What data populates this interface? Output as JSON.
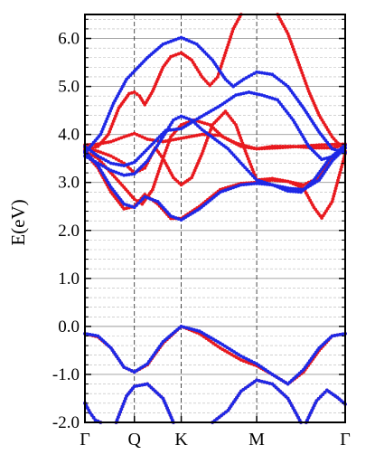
{
  "chart_data": {
    "type": "scatter",
    "title": "",
    "ylabel": "E(eV)",
    "xlabel": "",
    "ylim": [
      -2.0,
      6.5
    ],
    "xlim": [
      0,
      1
    ],
    "y_ticks": [
      -2.0,
      -1.0,
      0.0,
      1.0,
      2.0,
      3.0,
      4.0,
      5.0,
      6.0
    ],
    "y_tick_labels": [
      "-2.0",
      "-1.0",
      "0.0",
      "1.0",
      "2.0",
      "3.0",
      "4.0",
      "5.0",
      "6.0"
    ],
    "y_minor_step": 0.2,
    "x_ticks": [
      {
        "label": "Γ",
        "x": 0.0
      },
      {
        "label": "Q",
        "x": 0.19
      },
      {
        "label": "K",
        "x": 0.37
      },
      {
        "label": "M",
        "x": 0.66
      },
      {
        "label": "Γ",
        "x": 1.0
      }
    ],
    "grid": true,
    "legend": "none",
    "series": [
      {
        "color": "#e8191e",
        "style": "dots",
        "bands": [
          [
            [
              0,
              -0.15
            ],
            [
              0.05,
              -0.22
            ],
            [
              0.1,
              -0.45
            ],
            [
              0.15,
              -0.85
            ],
            [
              0.19,
              -0.95
            ],
            [
              0.24,
              -0.8
            ],
            [
              0.3,
              -0.35
            ],
            [
              0.37,
              0.0
            ],
            [
              0.44,
              -0.15
            ],
            [
              0.52,
              -0.45
            ],
            [
              0.6,
              -0.7
            ],
            [
              0.66,
              -0.82
            ],
            [
              0.72,
              -1.0
            ],
            [
              0.78,
              -1.2
            ],
            [
              0.84,
              -0.95
            ],
            [
              0.9,
              -0.5
            ],
            [
              0.95,
              -0.2
            ],
            [
              1.0,
              -0.15
            ]
          ],
          [
            [
              0,
              3.62
            ],
            [
              0.05,
              3.3
            ],
            [
              0.1,
              2.8
            ],
            [
              0.15,
              2.45
            ],
            [
              0.19,
              2.5
            ],
            [
              0.23,
              2.75
            ],
            [
              0.28,
              2.55
            ],
            [
              0.33,
              2.25
            ],
            [
              0.37,
              2.25
            ],
            [
              0.44,
              2.5
            ],
            [
              0.52,
              2.85
            ],
            [
              0.6,
              2.98
            ],
            [
              0.66,
              3.0
            ],
            [
              0.72,
              3.05
            ],
            [
              0.78,
              3.02
            ],
            [
              0.84,
              2.95
            ],
            [
              0.9,
              3.1
            ],
            [
              0.95,
              3.5
            ],
            [
              1.0,
              3.72
            ]
          ],
          [
            [
              0,
              3.65
            ],
            [
              0.05,
              3.5
            ],
            [
              0.1,
              3.2
            ],
            [
              0.15,
              2.9
            ],
            [
              0.19,
              2.65
            ],
            [
              0.22,
              2.55
            ],
            [
              0.26,
              2.85
            ],
            [
              0.3,
              3.5
            ],
            [
              0.33,
              3.95
            ],
            [
              0.37,
              4.2
            ],
            [
              0.42,
              4.3
            ],
            [
              0.48,
              4.2
            ],
            [
              0.53,
              3.95
            ],
            [
              0.6,
              3.75
            ],
            [
              0.66,
              3.7
            ],
            [
              0.72,
              3.75
            ],
            [
              0.8,
              3.75
            ],
            [
              0.88,
              3.72
            ],
            [
              0.95,
              3.72
            ],
            [
              1.0,
              3.78
            ]
          ],
          [
            [
              0,
              3.72
            ],
            [
              0.05,
              3.65
            ],
            [
              0.1,
              3.55
            ],
            [
              0.15,
              3.4
            ],
            [
              0.19,
              3.2
            ],
            [
              0.23,
              3.3
            ],
            [
              0.27,
              3.72
            ],
            [
              0.3,
              3.5
            ],
            [
              0.34,
              3.1
            ],
            [
              0.37,
              2.95
            ],
            [
              0.41,
              3.1
            ],
            [
              0.45,
              3.6
            ],
            [
              0.49,
              4.2
            ],
            [
              0.54,
              4.48
            ],
            [
              0.58,
              4.2
            ],
            [
              0.62,
              3.6
            ],
            [
              0.66,
              3.05
            ],
            [
              0.72,
              3.08
            ],
            [
              0.78,
              3.02
            ],
            [
              0.84,
              2.88
            ],
            [
              0.88,
              2.48
            ],
            [
              0.91,
              2.26
            ],
            [
              0.95,
              2.6
            ],
            [
              1.0,
              3.6
            ]
          ],
          [
            [
              0,
              3.78
            ],
            [
              0.05,
              3.8
            ],
            [
              0.1,
              3.85
            ],
            [
              0.15,
              3.95
            ],
            [
              0.19,
              4.02
            ],
            [
              0.24,
              3.9
            ],
            [
              0.3,
              3.85
            ],
            [
              0.37,
              3.92
            ],
            [
              0.45,
              4.0
            ],
            [
              0.52,
              3.98
            ],
            [
              0.58,
              3.82
            ],
            [
              0.66,
              3.7
            ],
            [
              0.74,
              3.72
            ],
            [
              0.82,
              3.75
            ],
            [
              0.9,
              3.78
            ],
            [
              1.0,
              3.8
            ]
          ],
          [
            [
              0,
              3.68
            ],
            [
              0.05,
              3.75
            ],
            [
              0.09,
              4.0
            ],
            [
              0.13,
              4.55
            ],
            [
              0.17,
              4.85
            ],
            [
              0.19,
              4.88
            ],
            [
              0.21,
              4.8
            ],
            [
              0.23,
              4.62
            ],
            [
              0.26,
              4.9
            ],
            [
              0.3,
              5.4
            ],
            [
              0.33,
              5.62
            ],
            [
              0.37,
              5.7
            ],
            [
              0.41,
              5.55
            ],
            [
              0.45,
              5.2
            ],
            [
              0.48,
              5.02
            ],
            [
              0.51,
              5.2
            ],
            [
              0.54,
              5.7
            ],
            [
              0.57,
              6.2
            ],
            [
              0.6,
              6.5
            ]
          ],
          [
            [
              0.74,
              6.5
            ],
            [
              0.78,
              6.1
            ],
            [
              0.82,
              5.5
            ],
            [
              0.86,
              4.9
            ],
            [
              0.9,
              4.4
            ],
            [
              0.95,
              3.95
            ],
            [
              1.0,
              3.65
            ]
          ],
          [
            [
              0,
              -1.6
            ],
            [
              0.02,
              -1.8
            ],
            [
              0.04,
              -1.95
            ],
            [
              0.06,
              -2.0
            ]
          ],
          [
            [
              0.12,
              -2.0
            ],
            [
              0.16,
              -1.45
            ],
            [
              0.19,
              -1.25
            ],
            [
              0.24,
              -1.2
            ],
            [
              0.3,
              -1.5
            ],
            [
              0.34,
              -2.0
            ]
          ],
          [
            [
              0.49,
              -2.0
            ],
            [
              0.55,
              -1.75
            ],
            [
              0.6,
              -1.35
            ],
            [
              0.66,
              -1.12
            ],
            [
              0.72,
              -1.2
            ],
            [
              0.78,
              -1.5
            ],
            [
              0.83,
              -2.0
            ]
          ],
          [
            [
              0.85,
              -2.0
            ],
            [
              0.89,
              -1.55
            ],
            [
              0.93,
              -1.33
            ],
            [
              0.97,
              -1.48
            ],
            [
              1.0,
              -1.62
            ]
          ]
        ]
      },
      {
        "color": "#1e28e6",
        "style": "dots",
        "bands": [
          [
            [
              0,
              -0.15
            ],
            [
              0.05,
              -0.2
            ],
            [
              0.1,
              -0.45
            ],
            [
              0.15,
              -0.85
            ],
            [
              0.19,
              -0.95
            ],
            [
              0.24,
              -0.78
            ],
            [
              0.3,
              -0.32
            ],
            [
              0.37,
              0.0
            ],
            [
              0.44,
              -0.1
            ],
            [
              0.52,
              -0.35
            ],
            [
              0.6,
              -0.62
            ],
            [
              0.66,
              -0.78
            ],
            [
              0.72,
              -1.0
            ],
            [
              0.78,
              -1.2
            ],
            [
              0.84,
              -0.9
            ],
            [
              0.9,
              -0.45
            ],
            [
              0.95,
              -0.2
            ],
            [
              1.0,
              -0.15
            ]
          ],
          [
            [
              0,
              3.65
            ],
            [
              0.05,
              3.35
            ],
            [
              0.1,
              2.9
            ],
            [
              0.15,
              2.55
            ],
            [
              0.19,
              2.48
            ],
            [
              0.23,
              2.7
            ],
            [
              0.28,
              2.6
            ],
            [
              0.33,
              2.3
            ],
            [
              0.37,
              2.22
            ],
            [
              0.44,
              2.45
            ],
            [
              0.52,
              2.8
            ],
            [
              0.6,
              2.95
            ],
            [
              0.66,
              2.98
            ],
            [
              0.72,
              2.95
            ],
            [
              0.78,
              2.88
            ],
            [
              0.84,
              2.85
            ],
            [
              0.9,
              3.05
            ],
            [
              0.95,
              3.45
            ],
            [
              1.0,
              3.72
            ]
          ],
          [
            [
              0,
              3.55
            ],
            [
              0.05,
              3.4
            ],
            [
              0.1,
              3.25
            ],
            [
              0.15,
              3.15
            ],
            [
              0.19,
              3.18
            ],
            [
              0.24,
              3.45
            ],
            [
              0.3,
              3.95
            ],
            [
              0.34,
              4.3
            ],
            [
              0.37,
              4.38
            ],
            [
              0.41,
              4.3
            ],
            [
              0.45,
              4.1
            ],
            [
              0.5,
              3.9
            ],
            [
              0.55,
              3.7
            ],
            [
              0.6,
              3.4
            ],
            [
              0.66,
              3.05
            ],
            [
              0.72,
              2.95
            ],
            [
              0.78,
              2.82
            ],
            [
              0.83,
              2.8
            ],
            [
              0.88,
              3.05
            ],
            [
              0.94,
              3.5
            ],
            [
              1.0,
              3.78
            ]
          ],
          [
            [
              0,
              3.75
            ],
            [
              0.05,
              3.55
            ],
            [
              0.1,
              3.4
            ],
            [
              0.15,
              3.35
            ],
            [
              0.19,
              3.42
            ],
            [
              0.25,
              3.75
            ],
            [
              0.31,
              4.08
            ],
            [
              0.37,
              4.12
            ],
            [
              0.44,
              4.35
            ],
            [
              0.52,
              4.6
            ],
            [
              0.58,
              4.82
            ],
            [
              0.63,
              4.88
            ],
            [
              0.68,
              4.82
            ],
            [
              0.74,
              4.72
            ],
            [
              0.8,
              4.3
            ],
            [
              0.86,
              3.75
            ],
            [
              0.91,
              3.48
            ],
            [
              0.96,
              3.55
            ],
            [
              1.0,
              3.72
            ]
          ],
          [
            [
              0,
              3.62
            ],
            [
              0.06,
              4.0
            ],
            [
              0.11,
              4.65
            ],
            [
              0.16,
              5.15
            ],
            [
              0.19,
              5.32
            ],
            [
              0.24,
              5.6
            ],
            [
              0.3,
              5.88
            ],
            [
              0.37,
              6.02
            ],
            [
              0.43,
              5.88
            ],
            [
              0.49,
              5.55
            ],
            [
              0.54,
              5.15
            ],
            [
              0.57,
              5.0
            ],
            [
              0.61,
              5.15
            ],
            [
              0.66,
              5.3
            ],
            [
              0.72,
              5.25
            ],
            [
              0.78,
              5.0
            ],
            [
              0.84,
              4.55
            ],
            [
              0.9,
              4.05
            ],
            [
              0.95,
              3.7
            ],
            [
              1.0,
              3.62
            ]
          ],
          [
            [
              0,
              -1.6
            ],
            [
              0.02,
              -1.8
            ],
            [
              0.04,
              -1.95
            ],
            [
              0.06,
              -2.0
            ]
          ],
          [
            [
              0.12,
              -2.0
            ],
            [
              0.16,
              -1.45
            ],
            [
              0.19,
              -1.25
            ],
            [
              0.24,
              -1.2
            ],
            [
              0.3,
              -1.5
            ],
            [
              0.34,
              -2.0
            ]
          ],
          [
            [
              0.49,
              -2.0
            ],
            [
              0.55,
              -1.75
            ],
            [
              0.6,
              -1.35
            ],
            [
              0.66,
              -1.12
            ],
            [
              0.72,
              -1.2
            ],
            [
              0.78,
              -1.5
            ],
            [
              0.83,
              -2.0
            ]
          ],
          [
            [
              0.85,
              -2.0
            ],
            [
              0.89,
              -1.55
            ],
            [
              0.93,
              -1.33
            ],
            [
              0.97,
              -1.48
            ],
            [
              1.0,
              -1.62
            ]
          ]
        ]
      }
    ]
  }
}
